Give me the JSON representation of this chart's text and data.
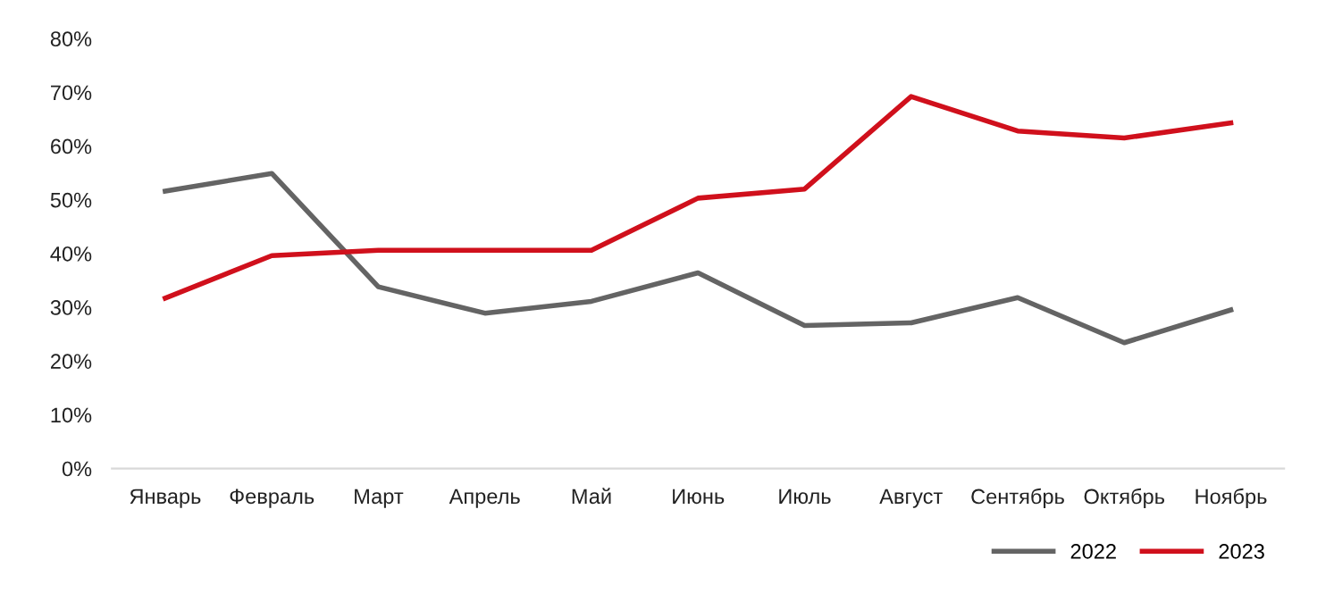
{
  "chart_data": {
    "type": "line",
    "categories": [
      "Январь",
      "Февраль",
      "Март",
      "Апрель",
      "Май",
      "Июнь",
      "Июль",
      "Август",
      "Сентябрь",
      "Октябрь",
      "Ноябрь"
    ],
    "series": [
      {
        "name": "2022",
        "color": "#646464",
        "values": [
          51.6,
          54.9,
          33.8,
          28.9,
          31.1,
          36.4,
          26.6,
          27.1,
          31.8,
          23.4,
          29.5
        ]
      },
      {
        "name": "2023",
        "color": "#d0101c",
        "values": [
          31.7,
          39.6,
          40.6,
          40.6,
          40.6,
          50.3,
          52.0,
          69.2,
          62.8,
          61.5,
          64.3
        ]
      }
    ],
    "ylim": [
      0,
      80
    ],
    "yticks": [
      {
        "value": 0,
        "label": "0%"
      },
      {
        "value": 10,
        "label": "10%"
      },
      {
        "value": 20,
        "label": "20%"
      },
      {
        "value": 30,
        "label": "30%"
      },
      {
        "value": 40,
        "label": "40%"
      },
      {
        "value": 50,
        "label": "50%"
      },
      {
        "value": 60,
        "label": "60%"
      },
      {
        "value": 70,
        "label": "70%"
      },
      {
        "value": 80,
        "label": "80%"
      }
    ],
    "grid": false,
    "legend": "bottom right",
    "marker": "none",
    "line_style": "solid"
  }
}
